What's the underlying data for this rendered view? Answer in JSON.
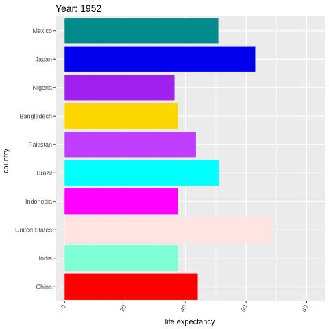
{
  "chart_data": {
    "type": "bar",
    "orientation": "horizontal",
    "title": "Year: 1952",
    "xlabel": "life expectancy",
    "ylabel": "country",
    "xlim": [
      -3,
      86
    ],
    "x_ticks": [
      0,
      20,
      40,
      60,
      80
    ],
    "categories": [
      "Mexico",
      "Japan",
      "Nigeria",
      "Bangladesh",
      "Pakistan",
      "Brazil",
      "Indonesia",
      "United States",
      "India",
      "China"
    ],
    "values": [
      50.8,
      63.0,
      36.3,
      37.5,
      43.4,
      50.9,
      37.5,
      68.4,
      37.4,
      44.0
    ],
    "colors": [
      "#008B8B",
      "#0000EE",
      "#A020F0",
      "#FFD700",
      "#BF3EFF",
      "#00FFFF",
      "#FF00FF",
      "#FFE4E1",
      "#7FFFD4",
      "#FF0000"
    ],
    "panel_background": "#EBEBEB",
    "grid": true,
    "legend": "none"
  }
}
